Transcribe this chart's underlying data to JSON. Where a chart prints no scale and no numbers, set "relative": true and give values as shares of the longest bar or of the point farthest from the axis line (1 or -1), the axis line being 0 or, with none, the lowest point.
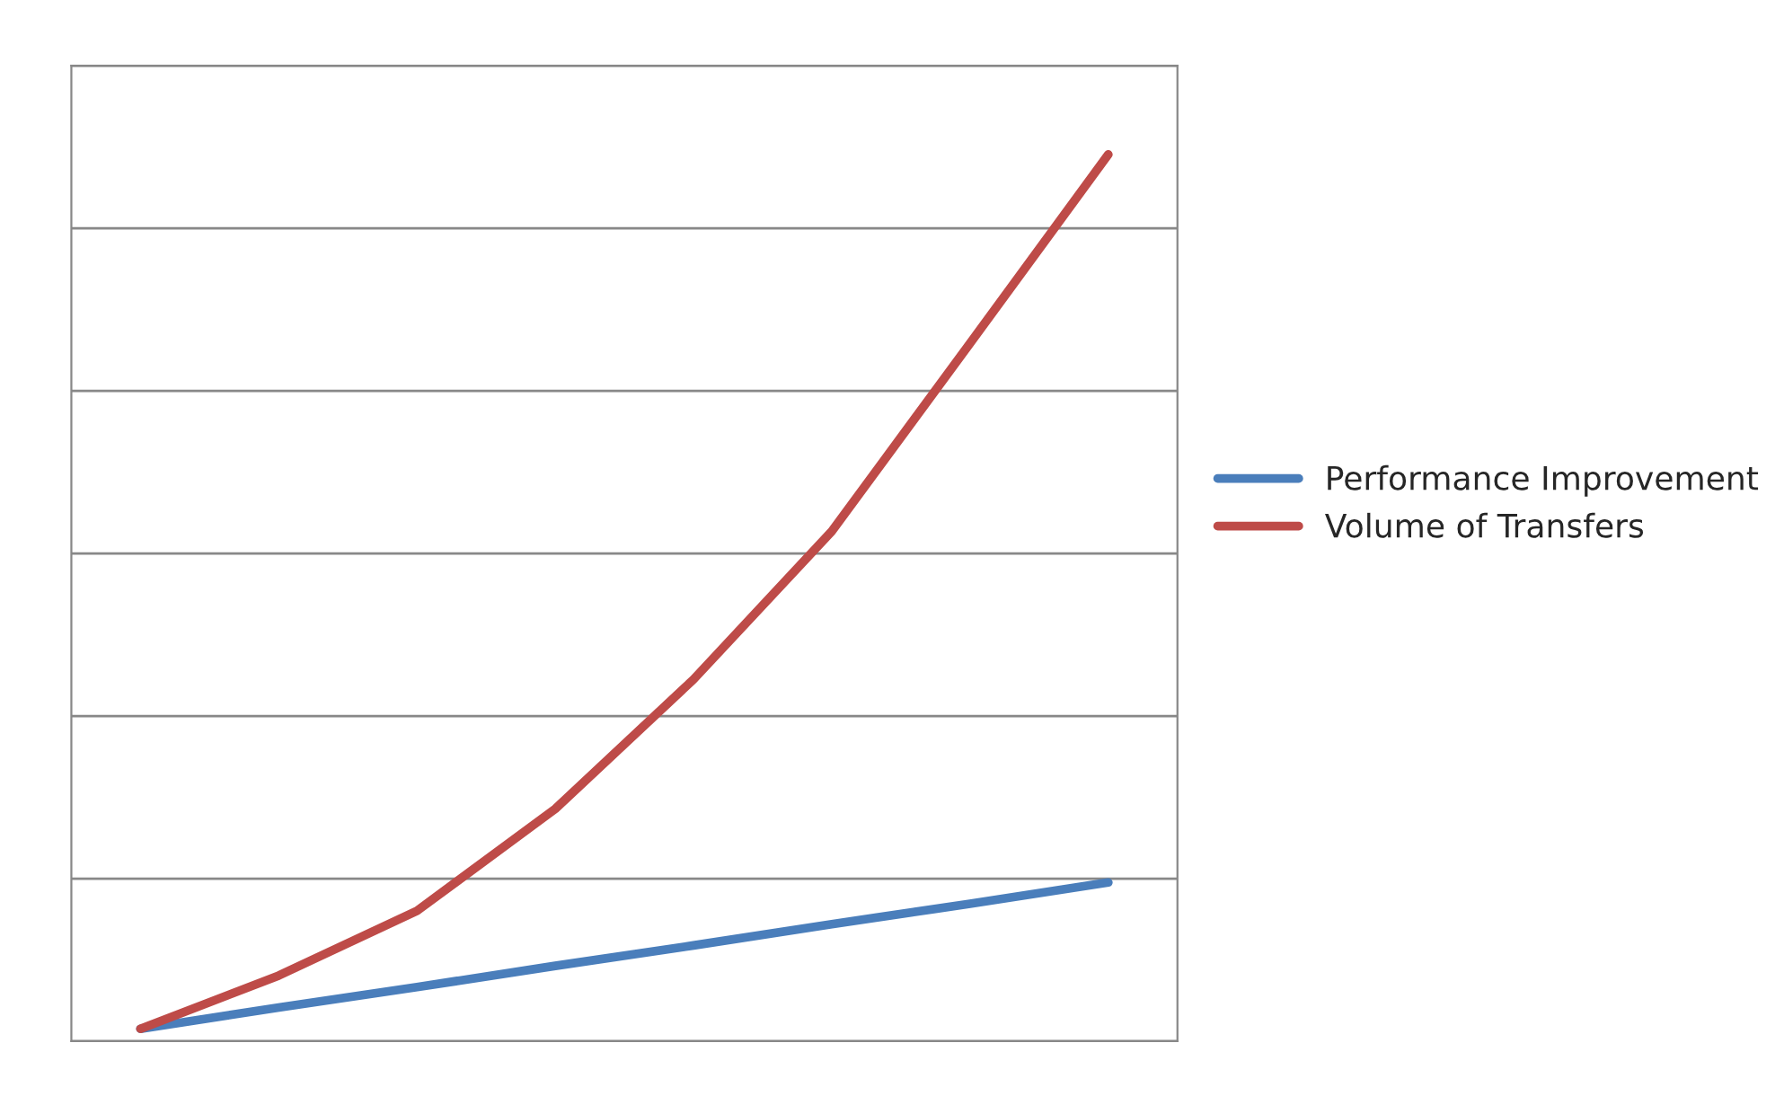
{
  "chart_data": {
    "type": "line",
    "relative": true,
    "categories": [
      null,
      null,
      null,
      null,
      null,
      null,
      null,
      null
    ],
    "series": [
      {
        "name": "Performance Improvement",
        "color": "#4a7ebb",
        "values": [
          0.014,
          0.038,
          0.061,
          0.085,
          0.108,
          0.132,
          0.155,
          0.179
        ]
      },
      {
        "name": "Volume of Transfers",
        "color": "#be4b48",
        "values": [
          0.014,
          0.074,
          0.147,
          0.262,
          0.408,
          0.575,
          0.787,
          1
        ]
      }
    ],
    "grid": "y",
    "legend": "right",
    "marker": "none",
    "line_style": "solid"
  }
}
